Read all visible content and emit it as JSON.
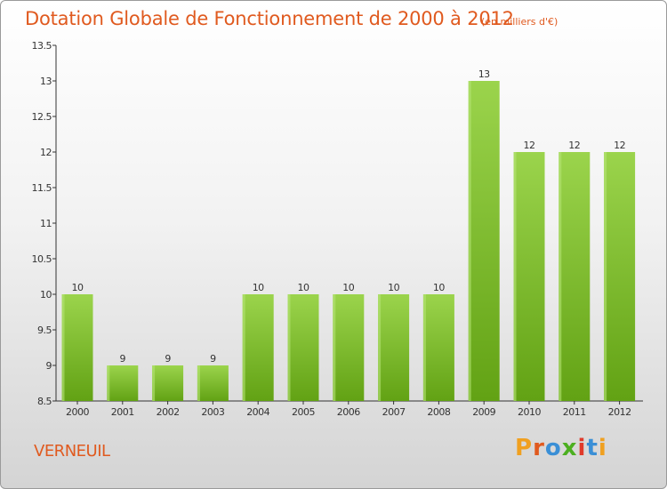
{
  "header": {
    "title": "Dotation Globale de Fonctionnement de 2000 à 2012",
    "unit": "(en milliers d'€)"
  },
  "footer": {
    "commune": "VERNEUIL",
    "brand": "Proxiti"
  },
  "colors": {
    "accent": "#e05a1f",
    "bar_top": "#9bd44c",
    "bar_bottom": "#62a214",
    "brand_letters": [
      "#f0a020",
      "#e05a1f",
      "#3a8fd6",
      "#4caf20",
      "#e03a2a",
      "#3a8fd6",
      "#f0a020"
    ]
  },
  "chart_data": {
    "type": "bar",
    "title": "Dotation Globale de Fonctionnement de 2000 à 2012",
    "subtitle": "(en milliers d'€)",
    "categories": [
      "2000",
      "2001",
      "2002",
      "2003",
      "2004",
      "2005",
      "2006",
      "2007",
      "2008",
      "2009",
      "2010",
      "2011",
      "2012"
    ],
    "values": [
      10,
      9,
      9,
      9,
      10,
      10,
      10,
      10,
      10,
      13,
      12,
      12,
      12
    ],
    "value_labels": [
      "10",
      "9",
      "9",
      "9",
      "10",
      "10",
      "10",
      "10",
      "10",
      "13",
      "12",
      "12",
      "12"
    ],
    "ylim": [
      8.5,
      13.5
    ],
    "yticks": [
      8.5,
      9,
      9.5,
      10,
      10.5,
      11,
      11.5,
      12,
      12.5,
      13,
      13.5
    ],
    "ytick_labels": [
      "8.5",
      "9",
      "9.5",
      "10",
      "10.5",
      "11",
      "11.5",
      "12",
      "12.5",
      "13",
      "13.5"
    ],
    "xlabel": "",
    "ylabel": "",
    "grid": false
  }
}
